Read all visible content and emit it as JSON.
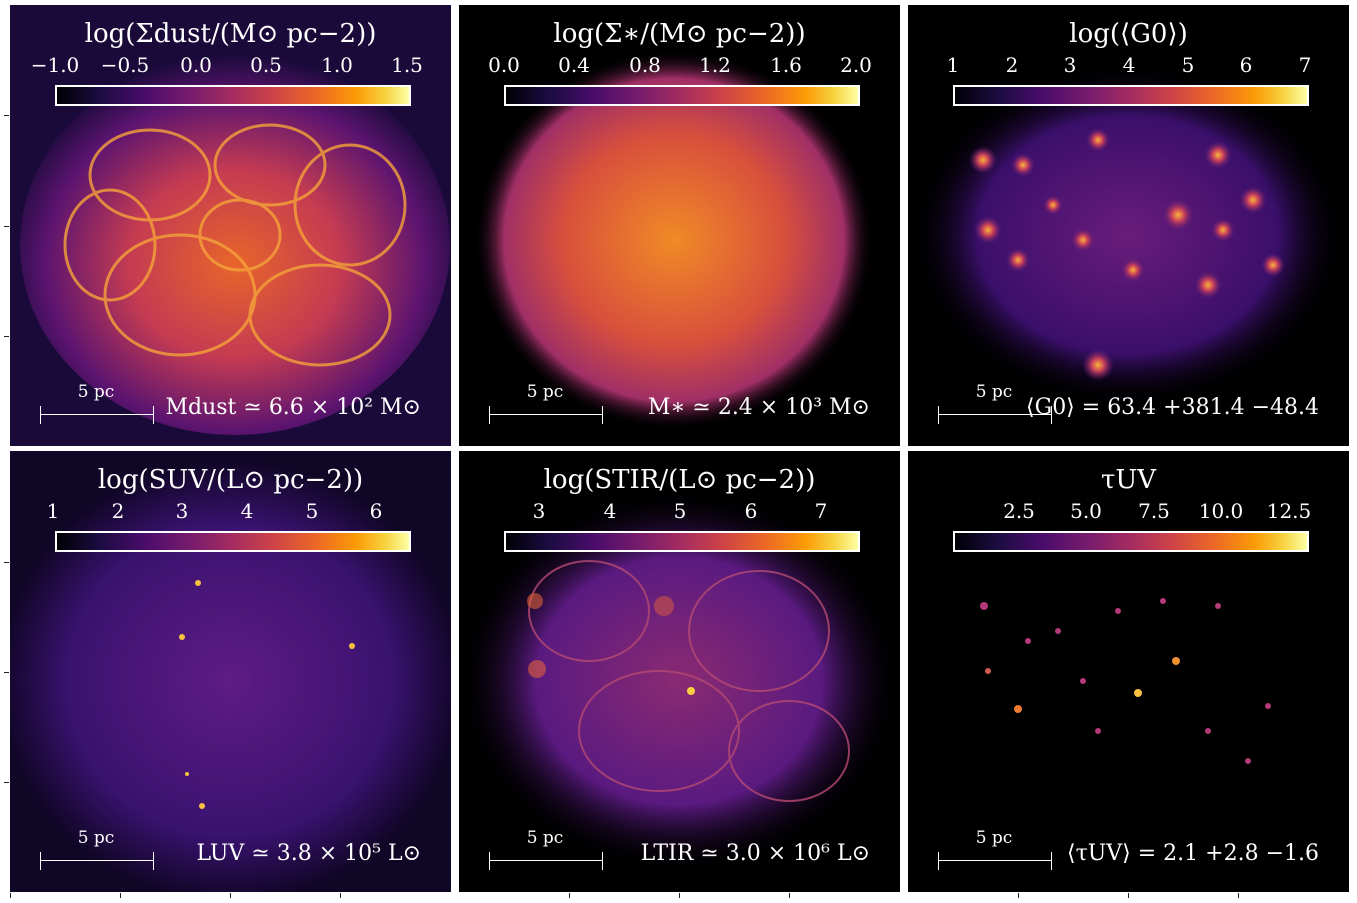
{
  "panels": [
    {
      "id": "dust",
      "title": "log(Σdust/(M⊙ pc−2))",
      "ticks": [
        "−1.0",
        "−0.5",
        "0.0",
        "0.5",
        "1.0",
        "1.5"
      ],
      "scale_label": "5 pc",
      "note": "Mdust ≃ 6.6 × 10² M⊙"
    },
    {
      "id": "stars",
      "title": "log(Σ∗/(M⊙ pc−2))",
      "ticks": [
        "0.0",
        "0.4",
        "0.8",
        "1.2",
        "1.6",
        "2.0"
      ],
      "scale_label": "5 pc",
      "note": "M∗ ≃ 2.4 × 10³ M⊙"
    },
    {
      "id": "g0",
      "title": "log(⟨G0⟩)",
      "ticks": [
        "1",
        "2",
        "3",
        "4",
        "5",
        "6",
        "7"
      ],
      "scale_label": "5 pc",
      "note": "⟨G0⟩ = 63.4 +381.4 −48.4"
    },
    {
      "id": "uv",
      "title": "log(SUV/(L⊙ pc−2))",
      "ticks": [
        "1",
        "2",
        "3",
        "4",
        "5",
        "6"
      ],
      "scale_label": "5 pc",
      "note": "LUV ≃ 3.8 × 10⁵ L⊙"
    },
    {
      "id": "tir",
      "title": "log(STIR/(L⊙ pc−2))",
      "ticks": [
        "3",
        "4",
        "5",
        "6",
        "7"
      ],
      "scale_label": "5 pc",
      "note": "LTIR ≃ 3.0 × 10⁶ L⊙"
    },
    {
      "id": "tau",
      "title": "τUV",
      "ticks": [
        "2.5",
        "5.0",
        "7.5",
        "10.0",
        "12.5"
      ],
      "scale_label": "5 pc",
      "note": "⟨τUV⟩ = 2.1 +2.8 −1.6"
    }
  ],
  "colors": {
    "colormap": "inferno",
    "background": "#000000",
    "text": "#ffffff"
  }
}
